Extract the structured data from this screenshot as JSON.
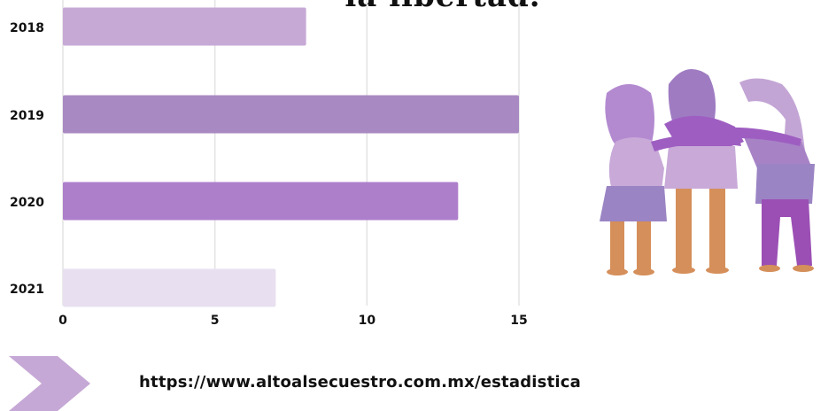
{
  "title": "la libertad.",
  "source_url": "https://www.altoalsecuestro.com.mx/estadistica",
  "chart_data": {
    "type": "bar",
    "orientation": "horizontal",
    "categories": [
      "2018",
      "2019",
      "2020",
      "2021"
    ],
    "values": [
      8,
      15,
      13,
      7
    ],
    "colors": [
      "#c7a9d6",
      "#a989c2",
      "#ad7fcb",
      "#e8e0f0"
    ],
    "xlim": [
      0,
      15
    ],
    "xticks": [
      "0",
      "5",
      "10",
      "15"
    ],
    "grid": true,
    "legend": "none"
  },
  "illustration": {
    "icon": "three-women-embracing-illustration"
  },
  "arrow": {
    "icon": "chevron-arrow-icon",
    "color": "#c6a8d6"
  }
}
